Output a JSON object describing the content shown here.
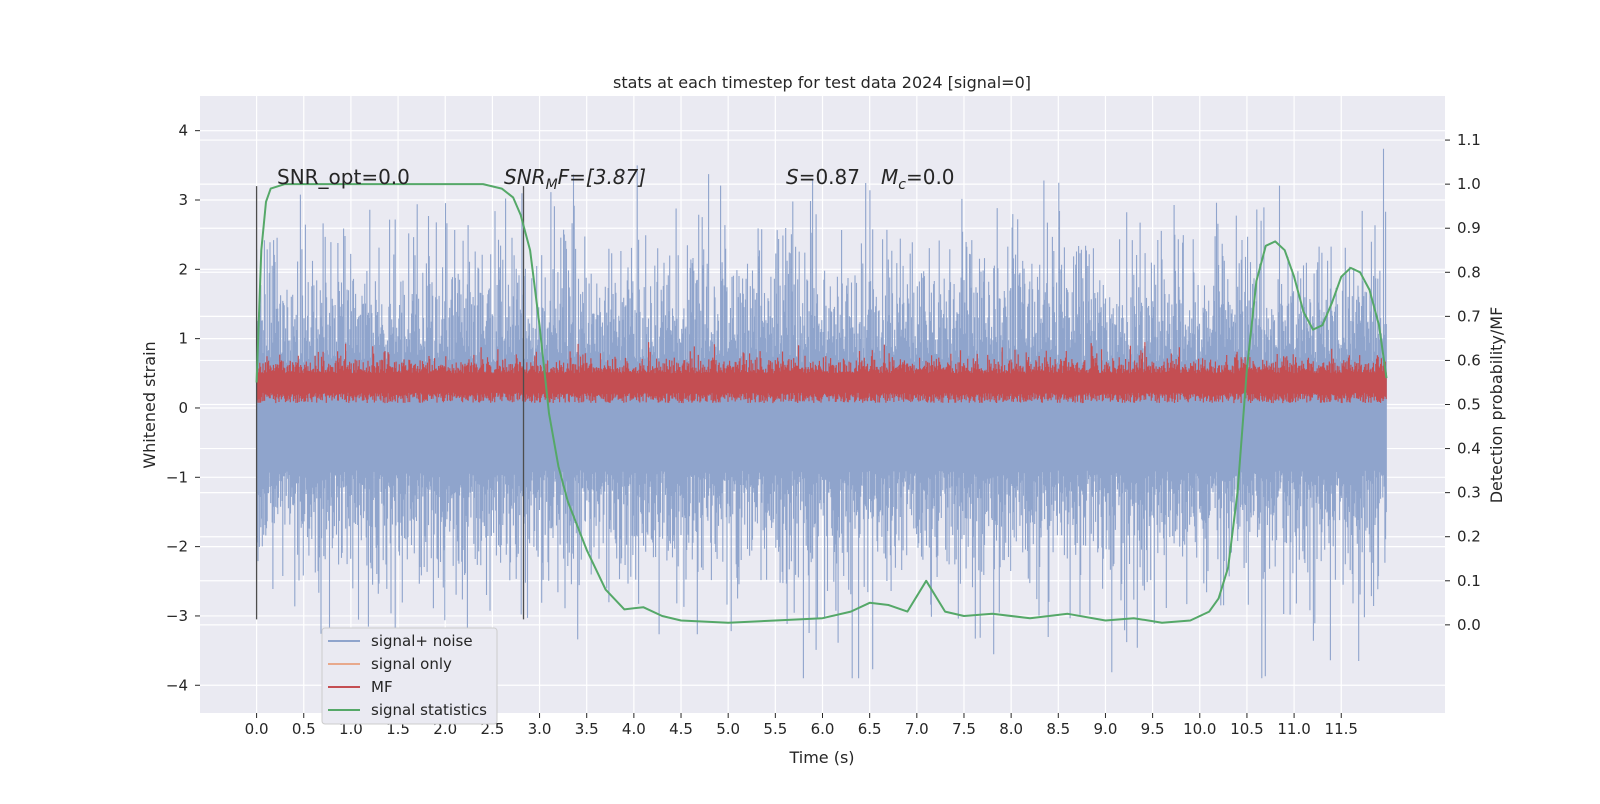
{
  "chart_data": {
    "type": "line",
    "title": "stats at each timestep for test data 2024 [signal=0]",
    "xlabel": "Time (s)",
    "ylabel": "Whitened strain",
    "y2label": "Detection probability/MF",
    "xlim": [
      -0.6,
      12.6
    ],
    "ylim": [
      -4.4,
      4.5
    ],
    "y2lim": [
      -0.2,
      1.2
    ],
    "xticks": [
      "0.0",
      "0.5",
      "1.0",
      "1.5",
      "2.0",
      "2.5",
      "3.0",
      "3.5",
      "4.0",
      "4.5",
      "5.0",
      "5.5",
      "6.0",
      "6.5",
      "7.0",
      "7.5",
      "8.0",
      "8.5",
      "9.0",
      "9.5",
      "10.0",
      "10.5",
      "11.0",
      "11.5"
    ],
    "yticks": [
      "−4",
      "−3",
      "−2",
      "−1",
      "0",
      "1",
      "2",
      "3",
      "4"
    ],
    "y2ticks": [
      "0.0",
      "0.1",
      "0.2",
      "0.3",
      "0.4",
      "0.5",
      "0.6",
      "0.7",
      "0.8",
      "0.9",
      "1.0",
      "1.1"
    ],
    "grid": true,
    "legend_position": "lower-left",
    "annotations": {
      "snr_opt": "SNR_opt=0.0",
      "snr_mf_prefix": "SNR",
      "snr_mf_sub": "M",
      "snr_mf_rest": "F=[3.87]",
      "s_label": "S",
      "s_value": "=0.87",
      "mc_label": "M",
      "mc_sub": "c",
      "mc_value": "=0.0"
    },
    "vlines": [
      0.0,
      2.83
    ],
    "series": [
      {
        "name": "signal+ noise",
        "color": "#8fa4cc",
        "description": "whitened strain noise spanning roughly -3.5 to 4 over 0 to 12 s",
        "x_range": [
          0.0,
          11.98
        ],
        "typical_range": [
          -2.2,
          2.0
        ],
        "extremes": [
          -3.9,
          4.1
        ]
      },
      {
        "name": "signal only",
        "color": "#e8a98c",
        "values": []
      },
      {
        "name": "MF",
        "color": "#c44e52",
        "description": "matched-filter output oscillating roughly between 0 and 0.9",
        "x_range": [
          0.0,
          11.98
        ],
        "typical_range": [
          0.05,
          0.7
        ]
      },
      {
        "name": "signal statistics",
        "color": "#55a868",
        "axis": "right",
        "x": [
          0.0,
          0.05,
          0.1,
          0.15,
          0.3,
          0.6,
          1.0,
          1.5,
          2.0,
          2.4,
          2.6,
          2.72,
          2.8,
          2.9,
          3.0,
          3.1,
          3.2,
          3.3,
          3.5,
          3.7,
          3.9,
          4.1,
          4.3,
          4.5,
          5.0,
          5.5,
          6.0,
          6.3,
          6.5,
          6.7,
          6.9,
          7.1,
          7.3,
          7.5,
          7.8,
          8.2,
          8.6,
          9.0,
          9.3,
          9.6,
          9.9,
          10.1,
          10.2,
          10.3,
          10.4,
          10.5,
          10.6,
          10.7,
          10.8,
          10.9,
          11.0,
          11.1,
          11.2,
          11.3,
          11.4,
          11.5,
          11.6,
          11.7,
          11.8,
          11.9,
          11.98
        ],
        "values": [
          0.55,
          0.85,
          0.96,
          0.99,
          1.0,
          1.0,
          1.0,
          1.0,
          1.0,
          1.0,
          0.99,
          0.97,
          0.93,
          0.85,
          0.68,
          0.48,
          0.36,
          0.28,
          0.17,
          0.08,
          0.035,
          0.04,
          0.02,
          0.01,
          0.005,
          0.01,
          0.015,
          0.03,
          0.05,
          0.045,
          0.03,
          0.1,
          0.03,
          0.02,
          0.025,
          0.015,
          0.025,
          0.01,
          0.015,
          0.005,
          0.01,
          0.03,
          0.06,
          0.13,
          0.3,
          0.58,
          0.78,
          0.86,
          0.87,
          0.85,
          0.79,
          0.71,
          0.67,
          0.68,
          0.73,
          0.79,
          0.81,
          0.8,
          0.76,
          0.68,
          0.56
        ]
      }
    ]
  }
}
